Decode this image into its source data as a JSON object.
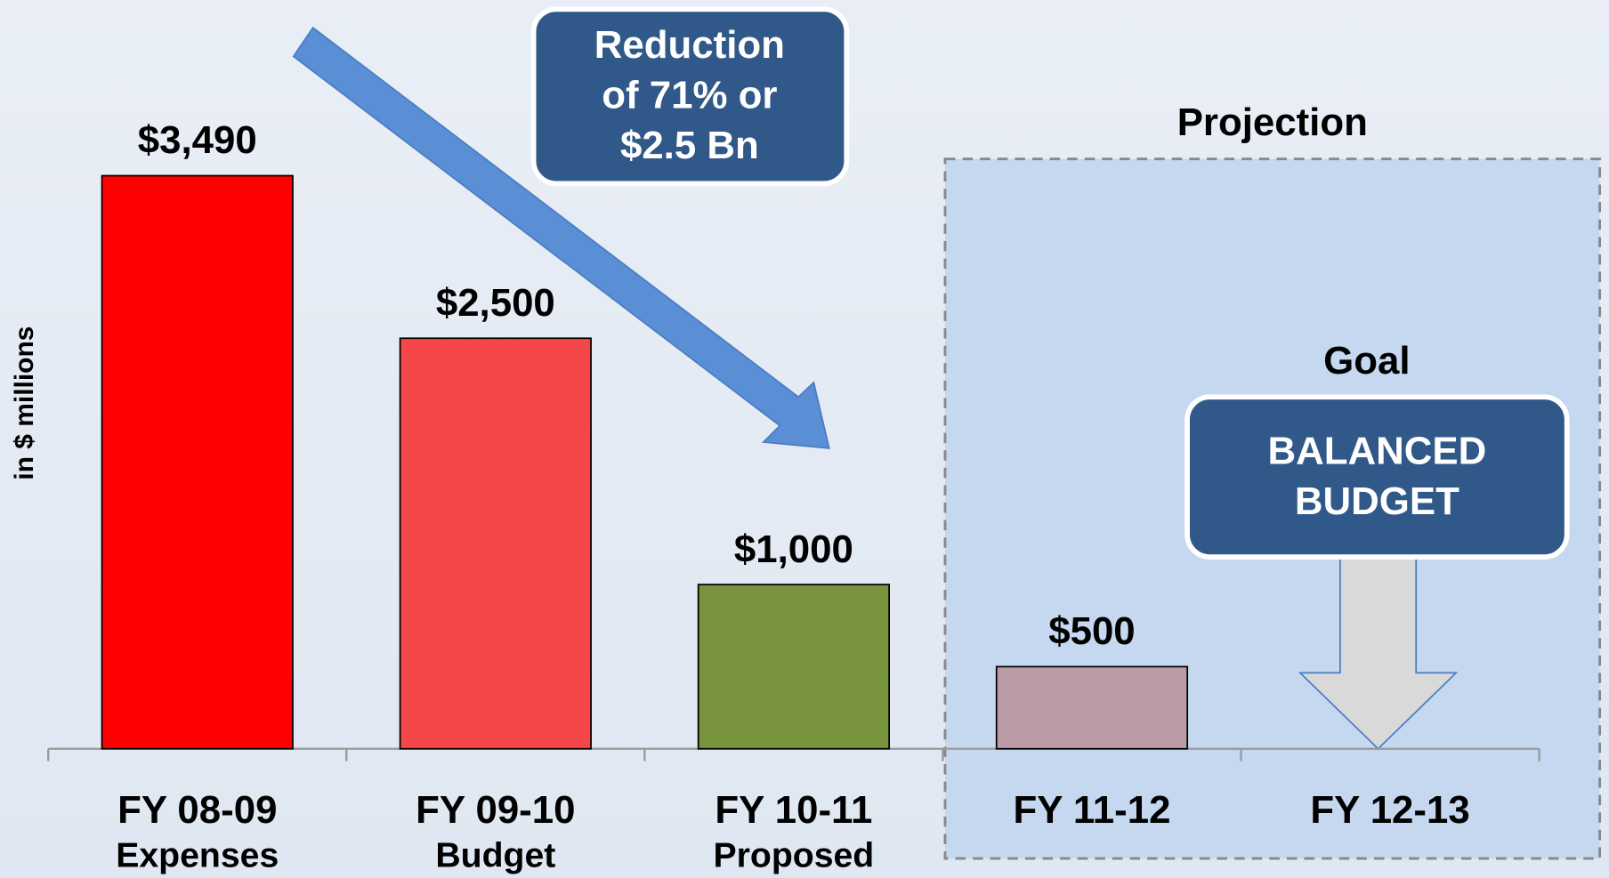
{
  "chart_data": {
    "type": "bar",
    "ylabel": "in $ millions",
    "categories": [
      "FY 08-09",
      "FY 09-10",
      "FY 10-11",
      "FY 11-12",
      "FY 12-13"
    ],
    "category_sublabels": [
      "Expenses",
      "Budget",
      "Proposed",
      null,
      null
    ],
    "values": [
      3490,
      2500,
      1000,
      500,
      null
    ],
    "value_labels": [
      "$3,490",
      "$2,500",
      "$1,000",
      "$500",
      null
    ],
    "colors": [
      "#ff0000",
      "#f5474a",
      "#77933c",
      "#bb9aa8",
      null
    ],
    "ylim": [
      0,
      4560
    ],
    "annotations": {
      "reduction": [
        "Reduction",
        "of 71% or",
        "$2.5  Bn"
      ],
      "projection": "Projection",
      "goal": "Goal",
      "balanced": [
        "BALANCED",
        "BUDGET"
      ]
    }
  }
}
